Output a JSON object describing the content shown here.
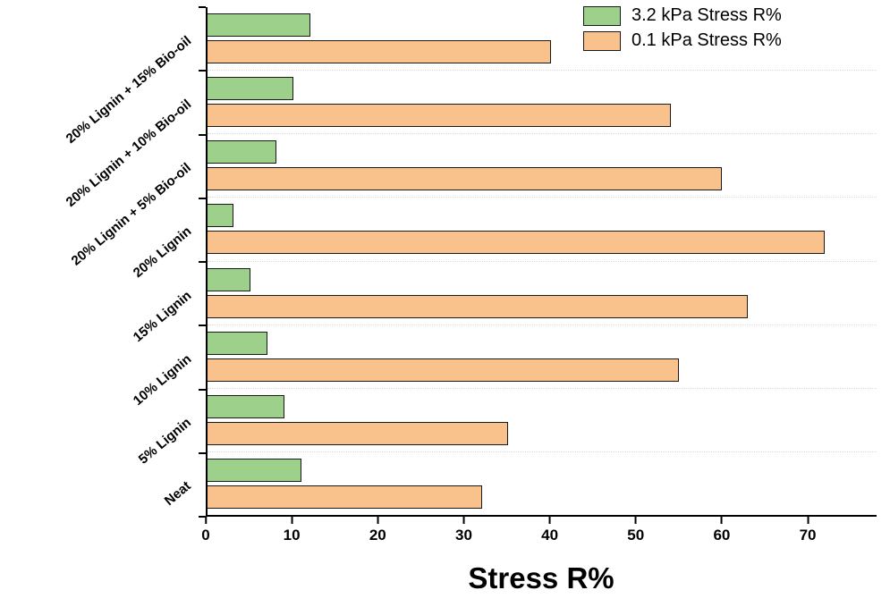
{
  "chart_data": {
    "type": "bar",
    "orientation": "horizontal",
    "title": "",
    "xlabel": "Stress R%",
    "ylabel": "",
    "xmax": 78,
    "xticks": [
      0,
      10,
      20,
      30,
      40,
      50,
      60,
      70
    ],
    "grid": "faint dotted horizontal lines between category groups",
    "legend_position": "top-right",
    "categories": [
      "20% Lignin + 15% Bio-oil",
      "20% Lignin + 10% Bio-oil",
      "20% Lignin + 5% Bio-oil",
      "20% Lignin",
      "15% Lignin",
      "10% Lignin",
      "5% Lignin",
      "Neat"
    ],
    "series": [
      {
        "name": "3.2 kPa Stress R%",
        "key": "3p2-kpa",
        "color": "#9dd18b",
        "border_color": "#1a1a1a",
        "values": [
          12,
          10,
          8,
          3,
          5,
          7,
          9,
          11
        ]
      },
      {
        "name": "0.1 kPa Stress R%",
        "key": "0p1-kpa",
        "color": "#f9c28c",
        "border_color": "#1a1a1a",
        "values": [
          40,
          54,
          60,
          72,
          63,
          55,
          35,
          32
        ]
      }
    ]
  }
}
